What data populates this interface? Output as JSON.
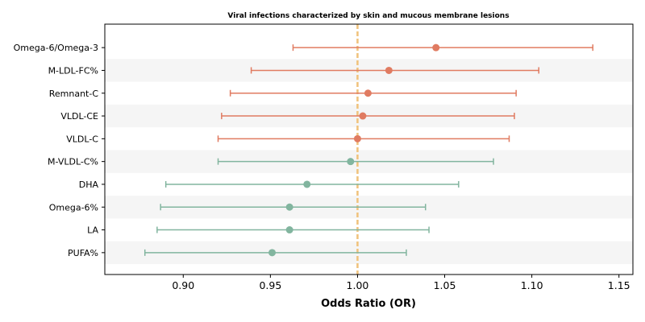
{
  "chart_data": {
    "type": "forest",
    "title": "Viral infections characterized by skin and mucous membrane lesions",
    "xlabel": "Odds Ratio (OR)",
    "ylabel": "",
    "xlim": [
      0.855,
      1.158
    ],
    "xticks": [
      0.9,
      0.95,
      1.0,
      1.05,
      1.1,
      1.15
    ],
    "xtick_labels": [
      "0.90",
      "0.95",
      "1.00",
      "1.05",
      "1.10",
      "1.15"
    ],
    "reference_line": 1.0,
    "grid": false,
    "colors": {
      "above_one": "#e07b61",
      "below_one": "#82b59f",
      "reference": "#f0c27b",
      "band": "#f5f5f5"
    },
    "rows": [
      {
        "label": "Omega-6/Omega-3",
        "or": 1.045,
        "lower": 0.963,
        "upper": 1.135
      },
      {
        "label": "M-LDL-FC%",
        "or": 1.018,
        "lower": 0.939,
        "upper": 1.104
      },
      {
        "label": "Remnant-C",
        "or": 1.006,
        "lower": 0.927,
        "upper": 1.091
      },
      {
        "label": "VLDL-CE",
        "or": 1.003,
        "lower": 0.922,
        "upper": 1.09
      },
      {
        "label": "VLDL-C",
        "or": 1.0,
        "lower": 0.92,
        "upper": 1.087
      },
      {
        "label": "M-VLDL-C%",
        "or": 0.996,
        "lower": 0.92,
        "upper": 1.078
      },
      {
        "label": "DHA",
        "or": 0.971,
        "lower": 0.89,
        "upper": 1.058
      },
      {
        "label": "Omega-6%",
        "or": 0.961,
        "lower": 0.887,
        "upper": 1.039
      },
      {
        "label": "LA",
        "or": 0.961,
        "lower": 0.885,
        "upper": 1.041
      },
      {
        "label": "PUFA%",
        "or": 0.951,
        "lower": 0.878,
        "upper": 1.028
      }
    ]
  }
}
